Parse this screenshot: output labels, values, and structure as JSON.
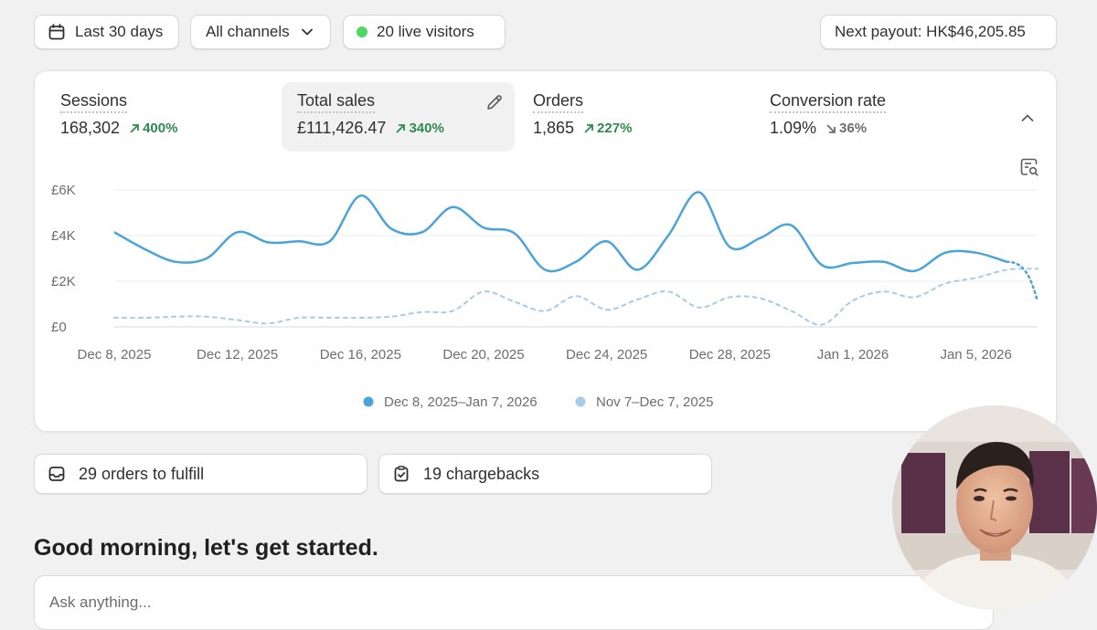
{
  "toolbar": {
    "date_range": "Last 30 days",
    "channels": "All channels",
    "live_visitors": "20 live visitors",
    "payout": "Next payout: HK$46,205.85"
  },
  "metrics": [
    {
      "label": "Sessions",
      "value": "168,302",
      "change": "400%",
      "direction": "up"
    },
    {
      "label": "Total sales",
      "value": "£111,426.47",
      "change": "340%",
      "direction": "up"
    },
    {
      "label": "Orders",
      "value": "1,865",
      "change": "227%",
      "direction": "up"
    },
    {
      "label": "Conversion rate",
      "value": "1.09%",
      "change": "36%",
      "direction": "down"
    }
  ],
  "chart_data": {
    "type": "line",
    "y_ticks": [
      "£0",
      "£2K",
      "£4K",
      "£6K"
    ],
    "ylim": [
      0,
      6000
    ],
    "x_ticks": [
      "Dec 8, 2025",
      "Dec 12, 2025",
      "Dec 16, 2025",
      "Dec 20, 2025",
      "Dec 24, 2025",
      "Dec 28, 2025",
      "Jan 1, 2026",
      "Jan 5, 2026"
    ],
    "x_tick_days": [
      0,
      4,
      8,
      12,
      16,
      20,
      24,
      28
    ],
    "grid": true,
    "legend_position": "bottom",
    "series": [
      {
        "name": "Dec 8, 2025–Jan 7, 2026",
        "color": "#4aa3d9",
        "style": "solid",
        "values": [
          4150,
          3400,
          2850,
          3000,
          4150,
          3700,
          3750,
          3750,
          5750,
          4300,
          4150,
          5250,
          4350,
          4100,
          2500,
          2850,
          3750,
          2500,
          4000,
          5900,
          3500,
          3900,
          4450,
          2700,
          2800,
          2850,
          2450,
          3250,
          3250,
          2850,
          1100
        ]
      },
      {
        "name": "Nov 7–Dec 7, 2025",
        "color": "#a6cbe8",
        "style": "dashed",
        "values": [
          400,
          400,
          450,
          450,
          300,
          150,
          400,
          400,
          400,
          450,
          650,
          700,
          1550,
          1100,
          700,
          1350,
          750,
          1200,
          1550,
          850,
          1300,
          1250,
          700,
          100,
          1150,
          1550,
          1300,
          1900,
          2150,
          2500,
          2550
        ]
      }
    ]
  },
  "tasks": {
    "fulfill": "29 orders to fulfill",
    "chargebacks": "19 chargebacks"
  },
  "greeting": "Good morning, let's get started.",
  "ask": {
    "placeholder": "Ask anything..."
  },
  "colors": {
    "live": "#4cd964",
    "up": "#2e8a4f",
    "primary_series": "#4aa3d9",
    "comparison_series": "#a6cbe8"
  }
}
